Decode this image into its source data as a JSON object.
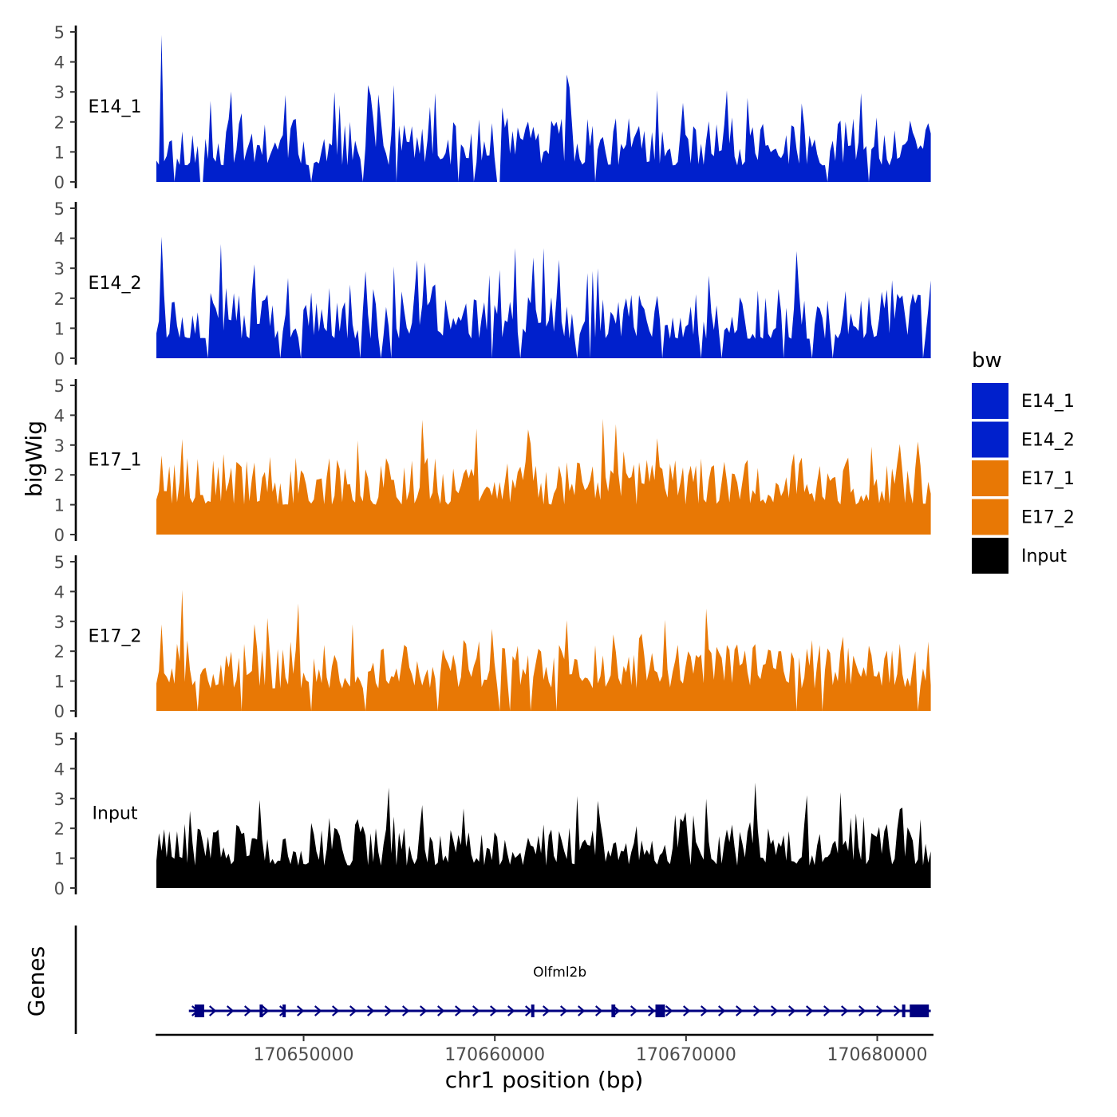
{
  "chart_data": {
    "type": "area",
    "chromosome": "chr1",
    "xlabel": "chr1 position (bp)",
    "ylabel_tracks": "bigWig",
    "ylabel_genes": "Genes",
    "xlim": [
      170642300,
      170682900
    ],
    "x_ticks": [
      170650000,
      170660000,
      170670000,
      170680000
    ],
    "x_tick_labels": [
      "170650000",
      "170660000",
      "170670000",
      "170680000"
    ],
    "ylim": [
      0,
      5
    ],
    "y_ticks": [
      0,
      1,
      2,
      3,
      4,
      5
    ],
    "y_tick_labels": [
      "0",
      "1",
      "2",
      "3",
      "4",
      "5"
    ],
    "legend": {
      "title": "bw",
      "position": "right",
      "entries": [
        {
          "label": "E14_1",
          "color": "#0020CC"
        },
        {
          "label": "E14_2",
          "color": "#0020CC"
        },
        {
          "label": "E17_1",
          "color": "#E87805"
        },
        {
          "label": "E17_2",
          "color": "#E87805"
        },
        {
          "label": "Input",
          "color": "#000000"
        }
      ]
    },
    "data_range": [
      170642300,
      170682800
    ],
    "tracks": [
      {
        "name": "E14_1",
        "color": "#0020CC",
        "seed": 11,
        "base": 0.55,
        "spread": 1.6,
        "spike": 0.12,
        "gap": 0.05,
        "peaks": [
          [
            170642600,
            4.9
          ],
          [
            170645100,
            2.7
          ],
          [
            170649100,
            2.9
          ],
          [
            170651600,
            3.0
          ],
          [
            170656600,
            2.5
          ],
          [
            170668500,
            3.05
          ],
          [
            170673200,
            2.8
          ],
          [
            170680000,
            2.15
          ]
        ]
      },
      {
        "name": "E14_2",
        "color": "#0020CC",
        "seed": 23,
        "base": 0.65,
        "spread": 1.7,
        "spike": 0.12,
        "gap": 0.04,
        "peaks": [
          [
            170642600,
            4.05
          ],
          [
            170653200,
            2.9
          ],
          [
            170656400,
            3.2
          ],
          [
            170665400,
            3.0
          ],
          [
            170671200,
            2.75
          ],
          [
            170679500,
            2.05
          ]
        ]
      },
      {
        "name": "E17_1",
        "color": "#E87805",
        "seed": 37,
        "base": 1.0,
        "spread": 1.6,
        "spike": 0.12,
        "gap": 0.0,
        "peaks": [
          [
            170642600,
            2.65
          ],
          [
            170643700,
            3.2
          ],
          [
            170648200,
            2.6
          ],
          [
            170656900,
            2.55
          ],
          [
            170659100,
            3.55
          ],
          [
            170666300,
            3.7
          ],
          [
            170679700,
            2.95
          ]
        ]
      },
      {
        "name": "E17_2",
        "color": "#E87805",
        "seed": 51,
        "base": 0.75,
        "spread": 1.5,
        "spike": 0.12,
        "gap": 0.03,
        "peaks": [
          [
            170642600,
            2.9
          ],
          [
            170643700,
            4.05
          ],
          [
            170652500,
            2.9
          ],
          [
            170665200,
            2.2
          ],
          [
            170668900,
            3.05
          ],
          [
            170681200,
            2.25
          ]
        ]
      },
      {
        "name": "Input",
        "color": "#000000",
        "seed": 73,
        "base": 0.75,
        "spread": 1.4,
        "spike": 0.1,
        "gap": 0.0,
        "peaks": [
          [
            170643400,
            1.9
          ],
          [
            170647700,
            2.95
          ],
          [
            170651300,
            2.35
          ],
          [
            170669500,
            2.45
          ],
          [
            170678900,
            2.5
          ],
          [
            170682200,
            2.3
          ]
        ]
      }
    ],
    "gene_track": {
      "genes": [
        {
          "name": "Olfml2b",
          "start": 170644000,
          "end": 170682800,
          "strand": "+",
          "color": "#000080",
          "exons": [
            [
              170644300,
              170644800
            ],
            [
              170647700,
              170647850
            ],
            [
              170648900,
              170649000
            ],
            [
              170661900,
              170662000
            ],
            [
              170666100,
              170666300
            ],
            [
              170668400,
              170668900
            ],
            [
              170681300,
              170681400
            ],
            [
              170681700,
              170682700
            ]
          ]
        }
      ]
    }
  }
}
